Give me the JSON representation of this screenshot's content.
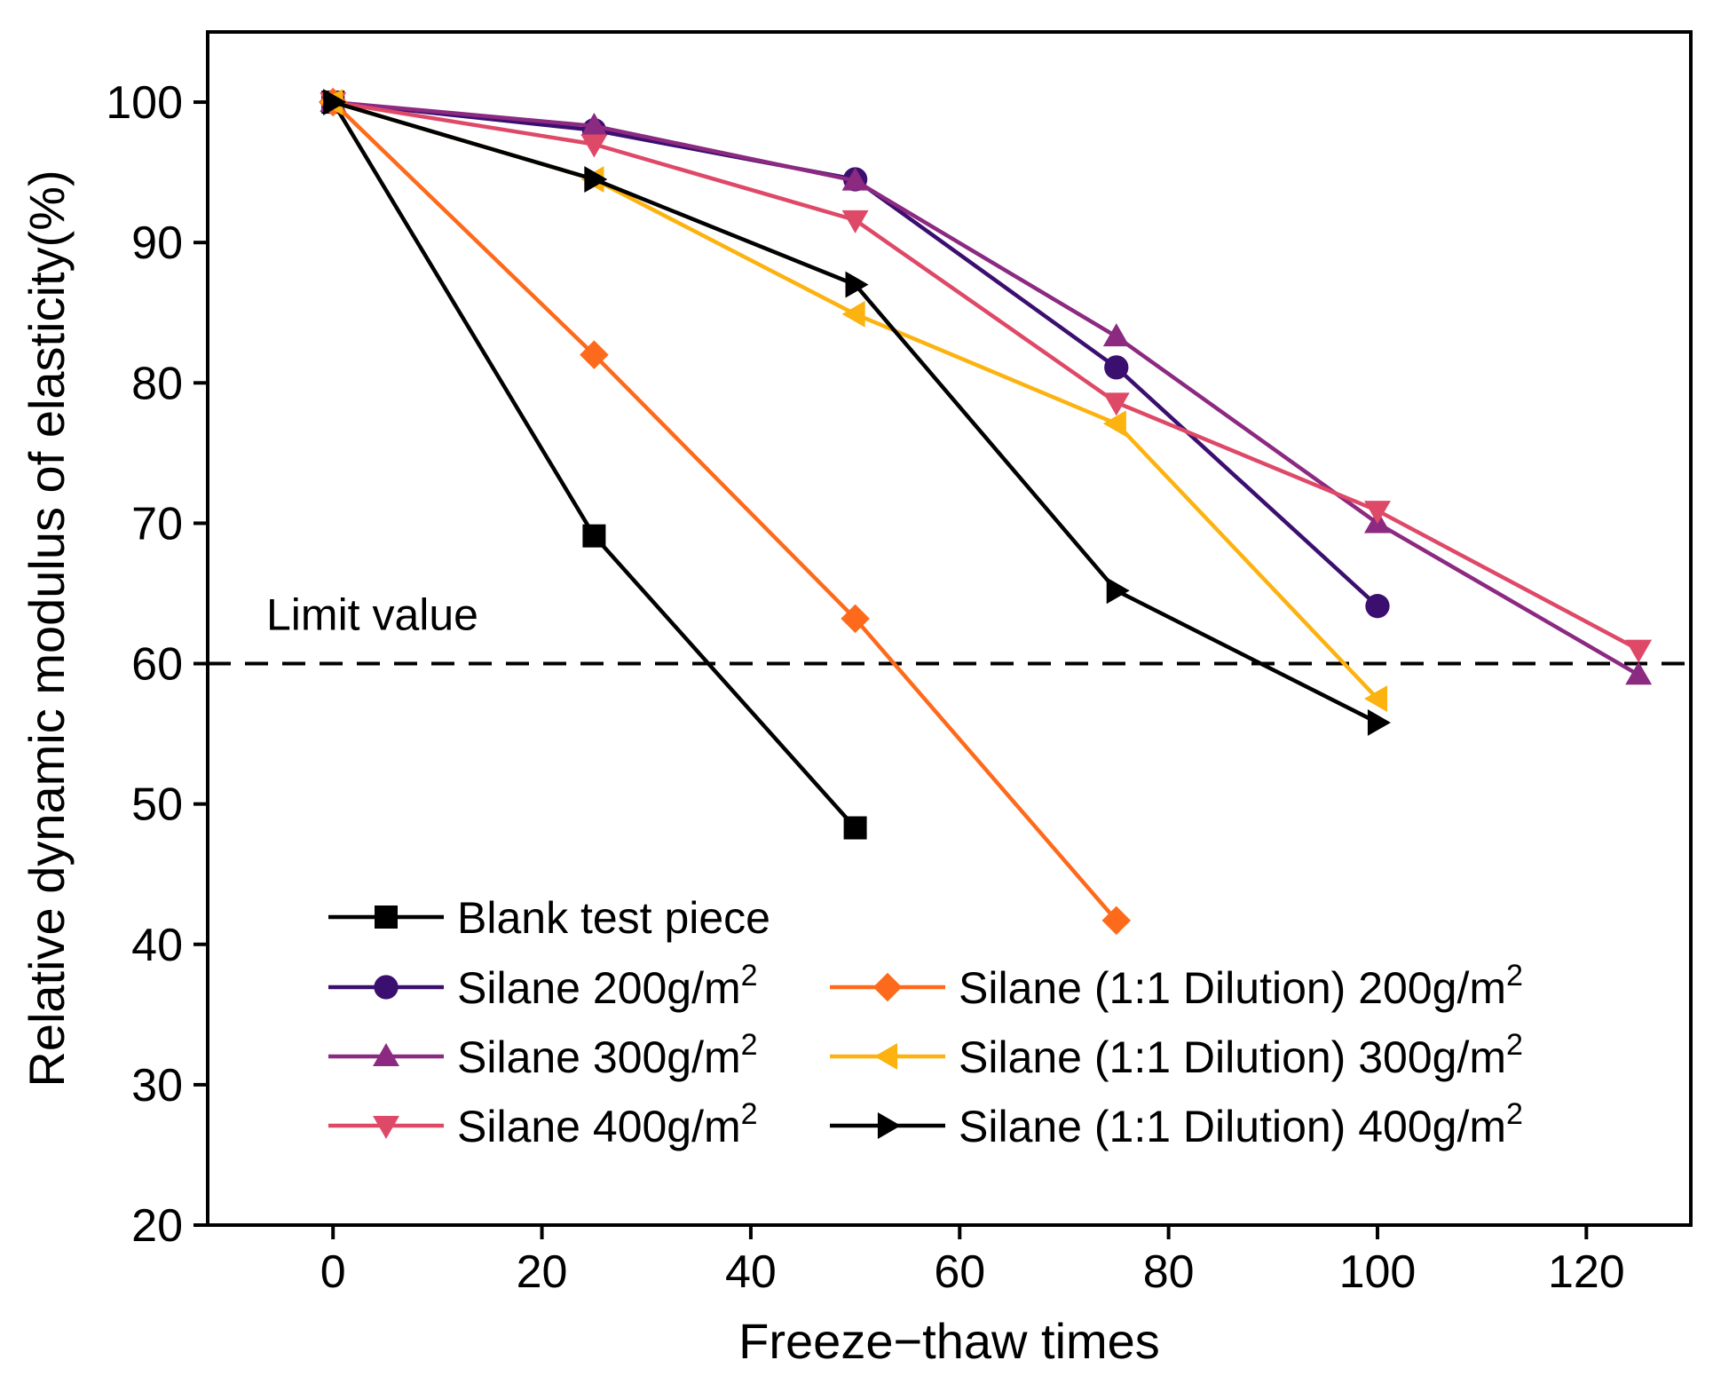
{
  "chart_data": {
    "type": "line",
    "xlabel": "Freeze−thaw times",
    "ylabel": "Relative dynamic modulus of elasticity(%)",
    "xlim": [
      -12,
      130
    ],
    "ylim": [
      20,
      105
    ],
    "xticks": [
      0,
      20,
      40,
      60,
      80,
      100,
      120
    ],
    "yticks": [
      20,
      30,
      40,
      50,
      60,
      70,
      80,
      90,
      100
    ],
    "grid": false,
    "legend_position": "bottom-center",
    "reference_line": {
      "y": 60,
      "style": "dashed",
      "label": "Limit value"
    },
    "series": [
      {
        "name": "Blank test piece",
        "marker": "square",
        "color": "#000000",
        "x": [
          0,
          25,
          50
        ],
        "y": [
          100,
          69.1,
          48.3
        ]
      },
      {
        "name": "Silane 200g/m",
        "name_sup": "2",
        "marker": "circle",
        "color": "#3b0f70",
        "x": [
          0,
          25,
          50,
          75,
          100
        ],
        "y": [
          100,
          98.0,
          94.5,
          81.1,
          64.1
        ]
      },
      {
        "name": "Silane 300g/m",
        "name_sup": "2",
        "marker": "triangle-up",
        "color": "#8c2981",
        "x": [
          0,
          25,
          50,
          75,
          100,
          125
        ],
        "y": [
          100,
          98.3,
          94.4,
          83.3,
          70.0,
          59.2
        ]
      },
      {
        "name": "Silane 400g/m",
        "name_sup": "2",
        "marker": "triangle-down",
        "color": "#de4968",
        "x": [
          0,
          25,
          50,
          75,
          100,
          125
        ],
        "y": [
          100,
          97.0,
          91.6,
          78.6,
          70.9,
          61.0
        ]
      },
      {
        "name": "Silane (1:1 Dilution) 200g/m",
        "name_sup": "2",
        "marker": "diamond",
        "color": "#fe6a1b",
        "x": [
          0,
          25,
          50,
          75
        ],
        "y": [
          100,
          82.0,
          63.2,
          41.7
        ]
      },
      {
        "name": "Silane (1:1 Dilution) 300g/m",
        "name_sup": "2",
        "marker": "triangle-left",
        "color": "#fcb20f",
        "x": [
          0,
          25,
          50,
          75,
          100
        ],
        "y": [
          100,
          94.5,
          84.9,
          77.1,
          57.5
        ]
      },
      {
        "name": "Silane (1:1 Dilution) 400g/m",
        "name_sup": "2",
        "marker": "triangle-right",
        "color": "#000000",
        "x": [
          0,
          25,
          50,
          75,
          100
        ],
        "y": [
          100,
          94.5,
          87.0,
          65.2,
          55.8
        ]
      }
    ]
  }
}
